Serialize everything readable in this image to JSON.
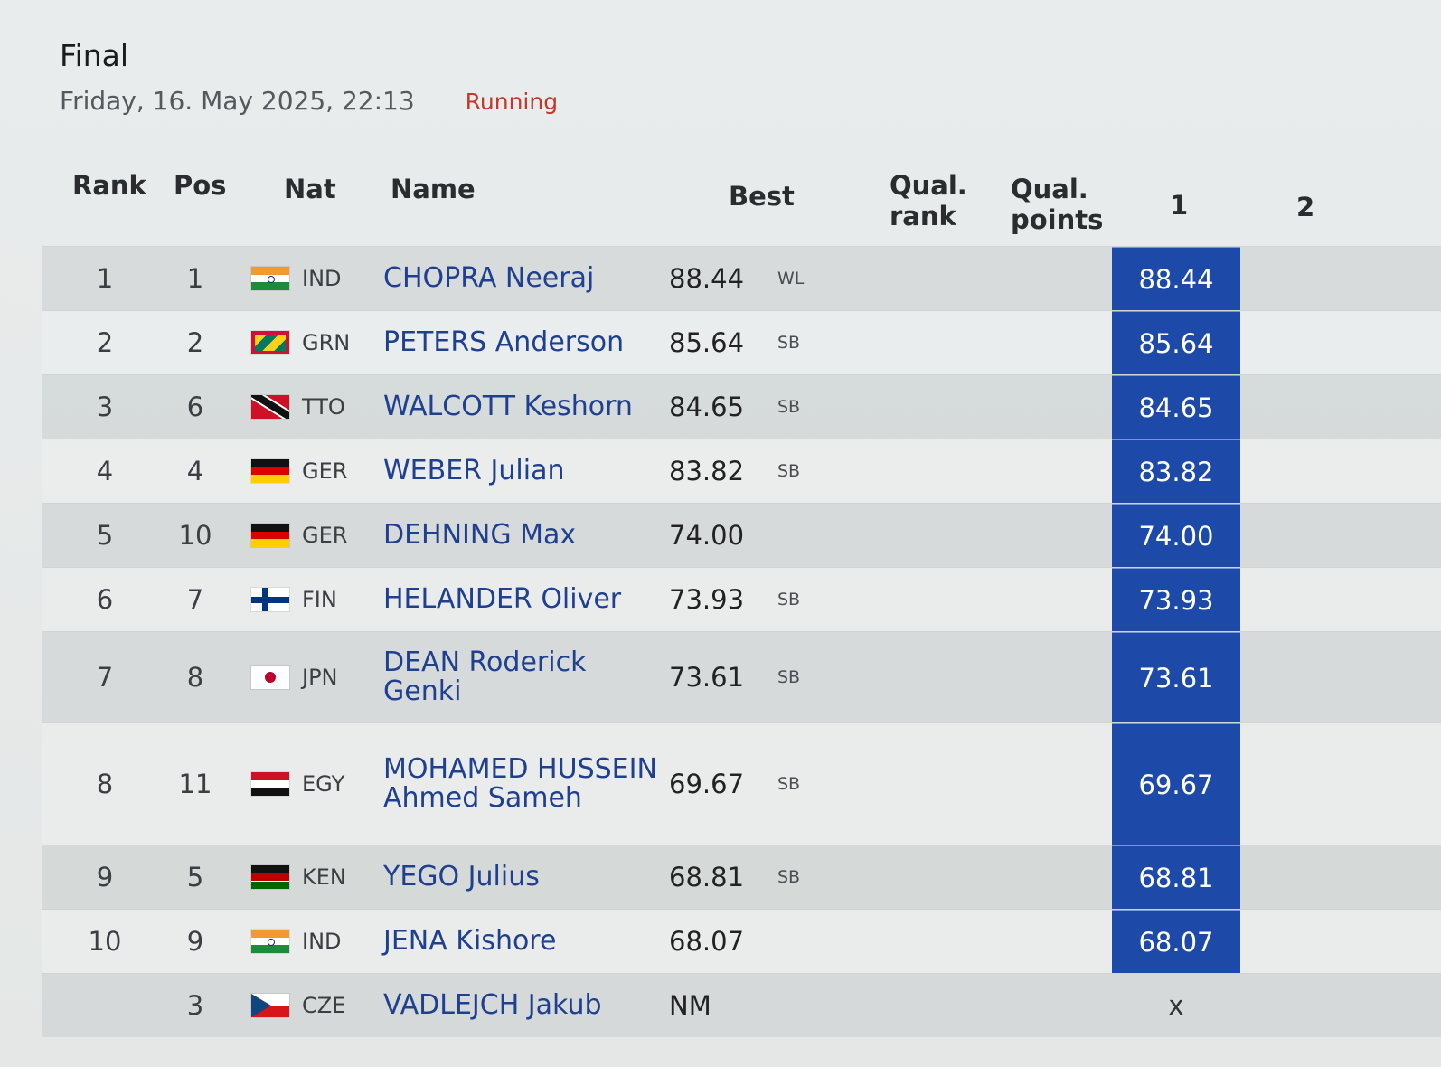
{
  "event": {
    "title": "Final",
    "date": "Friday, 16. May 2025, 22:13",
    "status": "Running"
  },
  "columns": {
    "rank": "Rank",
    "pos": "Pos",
    "nat": "Nat",
    "name": "Name",
    "best": "Best",
    "qual_rank_1": "Qual.",
    "qual_rank_2": "rank",
    "qual_points_1": "Qual.",
    "qual_points_2": "points",
    "attempt_1": "1",
    "attempt_2": "2"
  },
  "rows": [
    {
      "rank": "1",
      "pos": "1",
      "nat": "IND",
      "flag": "india-flag-icon",
      "name": "CHOPRA Neeraj",
      "best": "88.44",
      "note": "WL",
      "attempt1": "88.44"
    },
    {
      "rank": "2",
      "pos": "2",
      "nat": "GRN",
      "flag": "grenada-flag-icon",
      "name": "PETERS Anderson",
      "best": "85.64",
      "note": "SB",
      "attempt1": "85.64"
    },
    {
      "rank": "3",
      "pos": "6",
      "nat": "TTO",
      "flag": "trinidad-flag-icon",
      "name": "WALCOTT Keshorn",
      "best": "84.65",
      "note": "SB",
      "attempt1": "84.65"
    },
    {
      "rank": "4",
      "pos": "4",
      "nat": "GER",
      "flag": "germany-flag-icon",
      "name": "WEBER Julian",
      "best": "83.82",
      "note": "SB",
      "attempt1": "83.82"
    },
    {
      "rank": "5",
      "pos": "10",
      "nat": "GER",
      "flag": "germany-flag-icon",
      "name": "DEHNING Max",
      "best": "74.00",
      "note": "",
      "attempt1": "74.00"
    },
    {
      "rank": "6",
      "pos": "7",
      "nat": "FIN",
      "flag": "finland-flag-icon",
      "name": "HELANDER Oliver",
      "best": "73.93",
      "note": "SB",
      "attempt1": "73.93"
    },
    {
      "rank": "7",
      "pos": "8",
      "nat": "JPN",
      "flag": "japan-flag-icon",
      "name": "DEAN Roderick Genki",
      "best": "73.61",
      "note": "SB",
      "attempt1": "73.61"
    },
    {
      "rank": "8",
      "pos": "11",
      "nat": "EGY",
      "flag": "egypt-flag-icon",
      "name": "MOHAMED HUSSEIN Ahmed Sameh",
      "best": "69.67",
      "note": "SB",
      "attempt1": "69.67"
    },
    {
      "rank": "9",
      "pos": "5",
      "nat": "KEN",
      "flag": "kenya-flag-icon",
      "name": "YEGO Julius",
      "best": "68.81",
      "note": "SB",
      "attempt1": "68.81"
    },
    {
      "rank": "10",
      "pos": "9",
      "nat": "IND",
      "flag": "india-flag-icon",
      "name": "JENA Kishore",
      "best": "68.07",
      "note": "",
      "attempt1": "68.07"
    },
    {
      "rank": "",
      "pos": "3",
      "nat": "CZE",
      "flag": "czechia-flag-icon",
      "name": "VADLEJCH Jakub",
      "best": "NM",
      "note": "",
      "attempt1": "x"
    }
  ]
}
